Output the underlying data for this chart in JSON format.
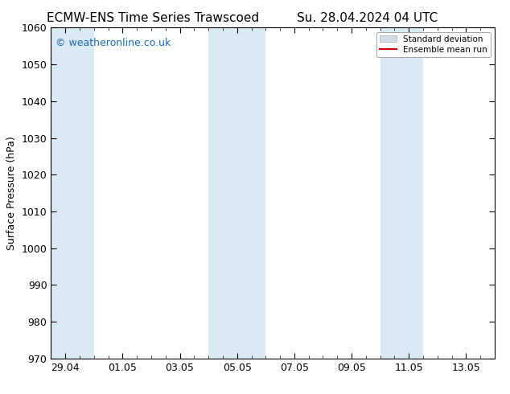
{
  "title_left": "ECMW-ENS Time Series Trawscoed",
  "title_right": "Su. 28.04.2024 04 UTC",
  "ylabel": "Surface Pressure (hPa)",
  "ylim": [
    970,
    1060
  ],
  "yticks": [
    970,
    980,
    990,
    1000,
    1010,
    1020,
    1030,
    1040,
    1050,
    1060
  ],
  "xlim_start": -0.5,
  "xlim_end": 15.0,
  "xtick_labels": [
    "29.04",
    "01.05",
    "03.05",
    "05.05",
    "07.05",
    "09.05",
    "11.05",
    "13.05"
  ],
  "xtick_positions": [
    0.0,
    2.0,
    4.0,
    6.0,
    8.0,
    10.0,
    12.0,
    14.0
  ],
  "shaded_bands": [
    {
      "x_start": -0.5,
      "x_end": 1.0,
      "color": "#daeaf5"
    },
    {
      "x_start": 5.0,
      "x_end": 7.0,
      "color": "#daeaf5"
    },
    {
      "x_start": 11.0,
      "x_end": 12.5,
      "color": "#daeaf5"
    }
  ],
  "watermark_text": "© weatheronline.co.uk",
  "watermark_color": "#1a6aad",
  "background_color": "#ffffff",
  "std_dev_legend_color": "#d0dde8",
  "mean_line_color": "#cc0000",
  "title_fontsize": 11,
  "axis_label_fontsize": 9,
  "tick_fontsize": 9,
  "watermark_fontsize": 9
}
